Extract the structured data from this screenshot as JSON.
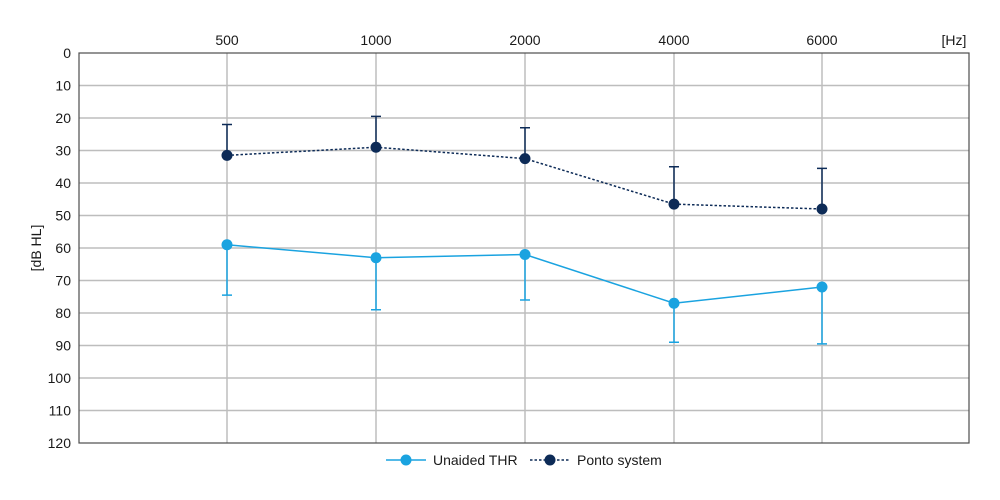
{
  "chart_data": {
    "type": "line",
    "x": [
      500,
      1000,
      2000,
      4000,
      6000
    ],
    "xtick_labels": [
      "500",
      "1000",
      "2000",
      "4000",
      "6000"
    ],
    "xunit": "[Hz]",
    "ylabel": "[dB HL]",
    "ylim": [
      0,
      120
    ],
    "yticks": [
      0,
      10,
      20,
      30,
      40,
      50,
      60,
      70,
      80,
      90,
      100,
      110,
      120
    ],
    "y_inverted": true,
    "grid": true,
    "legend_position": "bottom",
    "series": [
      {
        "name": "Unaided THR",
        "color": "#1aa3e0",
        "line_style": "solid",
        "values": [
          59,
          63,
          62,
          77,
          72
        ],
        "error_bar_end": [
          74.5,
          79,
          76,
          89,
          89.5
        ],
        "error_direction": "down"
      },
      {
        "name": "Ponto system",
        "color": "#0d2b57",
        "line_style": "dotted",
        "values": [
          31.5,
          29,
          32.5,
          46.5,
          48
        ],
        "error_bar_end": [
          22,
          19.5,
          23,
          35,
          35.5
        ],
        "error_direction": "up"
      }
    ]
  }
}
